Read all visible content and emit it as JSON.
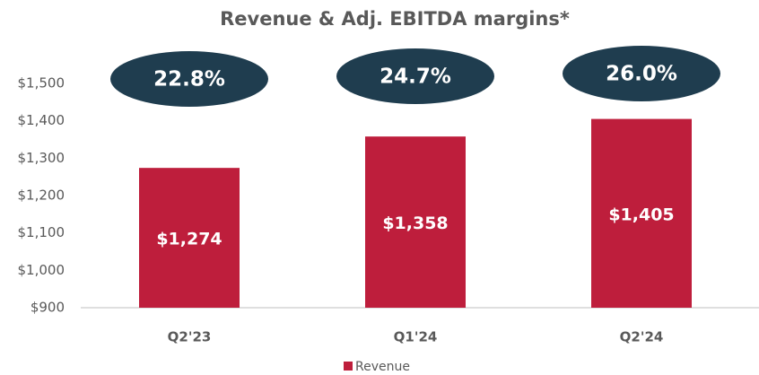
{
  "chart_data": {
    "type": "bar",
    "title": "Revenue & Adj. EBITDA margins*",
    "categories": [
      "Q2'23",
      "Q1'24",
      "Q2'24"
    ],
    "series": [
      {
        "name": "Revenue",
        "color": "#be1e3c",
        "values": [
          1274,
          1358,
          1405
        ],
        "value_labels": [
          "$1,274",
          "$1,358",
          "$1,405"
        ]
      }
    ],
    "annotations": [
      {
        "value": 22.8,
        "label": "22.8%"
      },
      {
        "value": 24.7,
        "label": "24.7%"
      },
      {
        "value": 26.0,
        "label": "26.0%"
      }
    ],
    "annotation_color": "#1f3d4f",
    "ylim": [
      900,
      1500
    ],
    "yticks": [
      {
        "value": 900,
        "label": "$900"
      },
      {
        "value": 1000,
        "label": "$1,000"
      },
      {
        "value": 1100,
        "label": "$1,100"
      },
      {
        "value": 1200,
        "label": "$1,200"
      },
      {
        "value": 1300,
        "label": "$1,300"
      },
      {
        "value": 1400,
        "label": "$1,400"
      },
      {
        "value": 1500,
        "label": "$1,500"
      }
    ],
    "grid": false,
    "legend": "bottom"
  }
}
